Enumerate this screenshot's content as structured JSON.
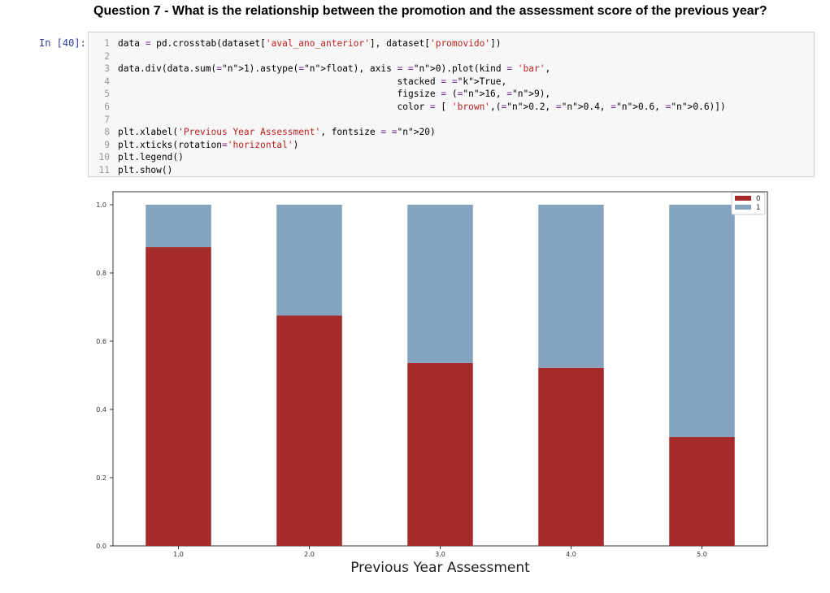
{
  "heading": "Question 7 - What is the relationship between the promotion and the assessment score of the previous year?",
  "cell": {
    "prompt": "In [40]:",
    "lines": [
      {
        "n": "1",
        "text": "data = pd.crosstab(dataset['aval_ano_anterior'], dataset['promovido'])"
      },
      {
        "n": "2",
        "text": ""
      },
      {
        "n": "3",
        "text": "data.div(data.sum(1).astype(float), axis = 0).plot(kind = 'bar',"
      },
      {
        "n": "4",
        "text": "                                                   stacked = True,"
      },
      {
        "n": "5",
        "text": "                                                   figsize = (16, 9),"
      },
      {
        "n": "6",
        "text": "                                                   color = [ 'brown',(0.2, 0.4, 0.6, 0.6)])"
      },
      {
        "n": "7",
        "text": ""
      },
      {
        "n": "8",
        "text": "plt.xlabel('Previous Year Assessment', fontsize = 20)"
      },
      {
        "n": "9",
        "text": "plt.xticks(rotation='horizontal')"
      },
      {
        "n": "10",
        "text": "plt.legend()"
      },
      {
        "n": "11",
        "text": "plt.show()"
      }
    ]
  },
  "chart_data": {
    "type": "bar",
    "stacked": true,
    "categories": [
      "1.0",
      "2.0",
      "3.0",
      "4.0",
      "5.0"
    ],
    "series": [
      {
        "name": "0",
        "values": [
          0.876,
          0.675,
          0.536,
          0.522,
          0.319
        ],
        "color": "#a52a2a"
      },
      {
        "name": "1",
        "values": [
          0.124,
          0.325,
          0.464,
          0.478,
          0.681
        ],
        "color": "#84a3bf"
      }
    ],
    "xlabel": "Previous Year Assessment",
    "ylabel": "",
    "ylim": [
      0,
      1.0
    ],
    "yticks": [
      "0.0",
      "0.2",
      "0.4",
      "0.6",
      "0.8",
      "1.0"
    ],
    "legend_position": "top-right",
    "grid": false
  }
}
